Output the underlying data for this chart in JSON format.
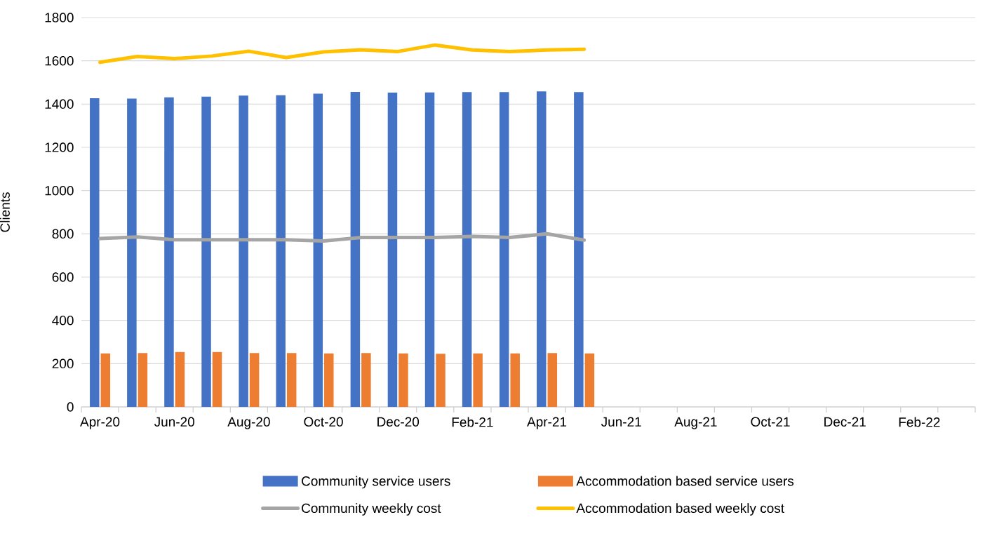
{
  "chart_data": {
    "type": "bar",
    "ylabel": "Clients",
    "categories": [
      "Apr-20",
      null,
      "Jun-20",
      null,
      "Aug-20",
      null,
      "Oct-20",
      null,
      "Dec-20",
      null,
      "Feb-21",
      null,
      "Apr-21",
      null,
      "Jun-21",
      null,
      "Aug-21",
      null,
      "Oct-21",
      null,
      "Dec-21",
      null,
      "Feb-22",
      null
    ],
    "series": [
      {
        "name": "Community service users",
        "color": "#4472c4",
        "values": [
          1427,
          1425,
          1431,
          1434,
          1439,
          1441,
          1448,
          1456,
          1453,
          1454,
          1455,
          1455,
          1459,
          1455,
          null,
          null,
          null,
          null,
          null,
          null,
          null,
          null,
          null,
          null
        ]
      },
      {
        "name": "Accommodation based service users",
        "color": "#ed7d31",
        "values": [
          247,
          249,
          254,
          254,
          249,
          249,
          247,
          249,
          247,
          246,
          247,
          247,
          249,
          247,
          null,
          null,
          null,
          null,
          null,
          null,
          null,
          null,
          null,
          null
        ]
      },
      {
        "name": "Community weekly cost",
        "type": "line",
        "color": "#a5a5a5",
        "values": [
          778,
          786,
          773,
          773,
          773,
          773,
          767,
          783,
          783,
          783,
          788,
          783,
          800,
          771,
          null,
          null,
          null,
          null,
          null,
          null,
          null,
          null,
          null,
          null
        ]
      },
      {
        "name": "Accommodation based weekly cost",
        "type": "line",
        "color": "#ffc000",
        "values": [
          1593,
          1620,
          1610,
          1622,
          1644,
          1615,
          1641,
          1651,
          1643,
          1673,
          1650,
          1643,
          1650,
          1653,
          null,
          null,
          null,
          null,
          null,
          null,
          null,
          null,
          null,
          null
        ]
      }
    ],
    "ylim": [
      0,
      1800
    ],
    "yticks": [
      0,
      200,
      400,
      600,
      800,
      1000,
      1200,
      1400,
      1600,
      1800
    ],
    "grid": "y",
    "legend": "bottom",
    "line_style": "solid",
    "marker": "none"
  }
}
